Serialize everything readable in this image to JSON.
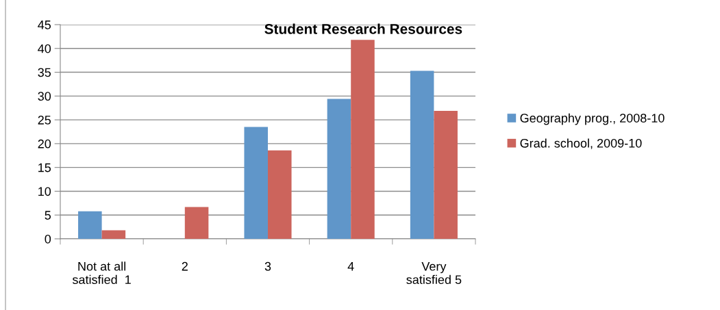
{
  "chart_data": {
    "type": "bar",
    "title": "Student Research Resources",
    "categories": [
      "Not at all\nsatisfied  1",
      "2",
      "3",
      "4",
      "Very\nsatisfied 5"
    ],
    "series": [
      {
        "name": "Geography prog., 2008-10",
        "color": "#6096c9",
        "values": [
          5.8,
          0,
          23.5,
          29.4,
          35.3
        ]
      },
      {
        "name": "Grad. school, 2009-10",
        "color": "#cc645c",
        "values": [
          1.8,
          6.7,
          18.6,
          41.8,
          26.9
        ]
      }
    ],
    "ylim": [
      0,
      45
    ],
    "yticks": [
      0,
      5,
      10,
      15,
      20,
      25,
      30,
      35,
      40,
      45
    ],
    "grid": "y",
    "legend": "right"
  }
}
